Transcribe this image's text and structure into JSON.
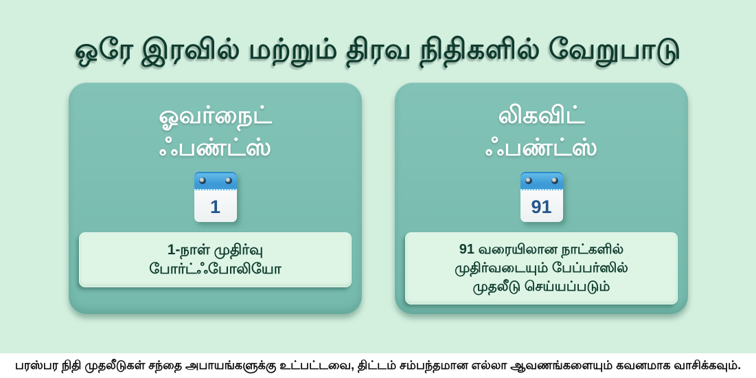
{
  "page": {
    "title": "ஒரே இரவில் மற்றும் திரவ நிதிகளில் வேறுபாடு"
  },
  "cards": [
    {
      "name": "overnight-funds",
      "title_line1": "ஓவர்நைட்",
      "title_line2": "ஃபண்ட்ஸ்",
      "calendar_day": "1",
      "description_lines": [
        "1-நாள் முதிர்வு",
        "போர்ட்ஃபோலியோ"
      ]
    },
    {
      "name": "liquid-funds",
      "title_line1": "லிகவிட்",
      "title_line2": "ஃபண்ட்ஸ்",
      "calendar_day": "91",
      "description_lines": [
        "91 வரையிலான நாட்களில்",
        "முதிர்வடையும் பேப்பர்ஸில்",
        "முதலீடு செய்யப்படும்"
      ]
    }
  ],
  "footer": {
    "disclaimer": "பரஸ்பர நிதி முதலீடுகள் சந்தை அபாயங்களுக்கு உட்பட்டவை, திட்டம் சம்பந்தமான எல்லா ஆவணங்களையும் கவனமாக வாசிக்கவும்."
  },
  "icons": {
    "calendar": "calendar-icon"
  },
  "colors": {
    "page_bg": "#d3efde",
    "title_text": "#0e3b2e",
    "card_bg": "#74b9ac",
    "card_bg_light": "#83c3b7",
    "card_title_text": "#ffffff",
    "box_bg": "#def5e5",
    "box_text": "#113d30",
    "calendar_blue": "#3d9ad7",
    "calendar_blue_light": "#67bfec",
    "calendar_number": "#23568a",
    "footer_bg": "#ffffff",
    "footer_text": "#0b0b0b"
  }
}
